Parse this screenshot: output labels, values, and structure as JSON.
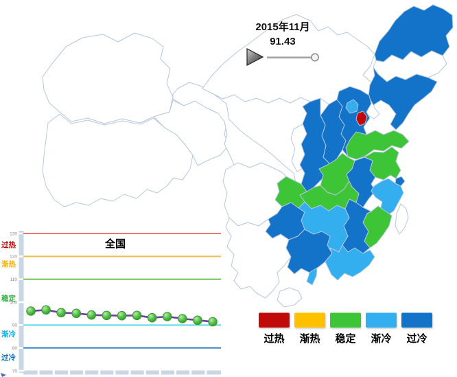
{
  "map_header": {
    "date": "2015年11月",
    "value": "91.43"
  },
  "slider": {
    "position": "end",
    "play_icon": "play-triangle"
  },
  "status_colors": {
    "过热": "#C00A0A",
    "渐热": "#FFC000",
    "稳定": "#3EC437",
    "渐冷": "#33AEEF",
    "过冷": "#1273C8",
    "": "#FFFFFF"
  },
  "legend": {
    "items": [
      {
        "label": "过热"
      },
      {
        "label": "渐热"
      },
      {
        "label": "稳定"
      },
      {
        "label": "渐冷"
      },
      {
        "label": "过冷"
      }
    ]
  },
  "map": {
    "provinces": [
      {
        "id": "xinjiang",
        "status": ""
      },
      {
        "id": "xizang",
        "status": ""
      },
      {
        "id": "qinghai",
        "status": ""
      },
      {
        "id": "gansu",
        "status": ""
      },
      {
        "id": "neimenggu",
        "status": ""
      },
      {
        "id": "ningxia",
        "status": ""
      },
      {
        "id": "sichuan",
        "status": ""
      },
      {
        "id": "yunnan",
        "status": ""
      },
      {
        "id": "jilin",
        "status": ""
      },
      {
        "id": "hainan",
        "status": ""
      },
      {
        "id": "taiwan",
        "status": ""
      },
      {
        "id": "heilongjiang",
        "status": "过冷"
      },
      {
        "id": "liaoning",
        "status": "过冷"
      },
      {
        "id": "beijing",
        "status": "渐冷"
      },
      {
        "id": "tianjin",
        "status": "过热"
      },
      {
        "id": "hebei",
        "status": "过冷"
      },
      {
        "id": "shanxi",
        "status": "过冷"
      },
      {
        "id": "shaanxi",
        "status": "过冷"
      },
      {
        "id": "shandong",
        "status": "稳定"
      },
      {
        "id": "henan",
        "status": "稳定"
      },
      {
        "id": "jiangsu",
        "status": "稳定"
      },
      {
        "id": "shanghai",
        "status": "过冷"
      },
      {
        "id": "anhui",
        "status": "过冷"
      },
      {
        "id": "zhejiang",
        "status": "渐冷"
      },
      {
        "id": "hubei",
        "status": "稳定"
      },
      {
        "id": "chongqing",
        "status": "稳定"
      },
      {
        "id": "hunan",
        "status": "渐冷"
      },
      {
        "id": "jiangxi",
        "status": "过冷"
      },
      {
        "id": "fujian",
        "status": "稳定"
      },
      {
        "id": "guizhou",
        "status": "过冷"
      },
      {
        "id": "guangxi",
        "status": "过冷"
      },
      {
        "id": "guangdong",
        "status": "渐冷"
      }
    ]
  },
  "chart_data": {
    "type": "line",
    "title": "全国",
    "x_tick_count": 13,
    "values": [
      96.1,
      96.6,
      95.4,
      95.1,
      94.4,
      94.2,
      94.1,
      94.2,
      93.2,
      93.7,
      92.8,
      92.1,
      91.43
    ],
    "ylim": [
      70,
      130
    ],
    "yticks": [
      130,
      120,
      110,
      100,
      90,
      80,
      70
    ],
    "threshold_lines": [
      {
        "y": 130,
        "color": "#E9756B"
      },
      {
        "y": 120,
        "color": "#F1BC4C"
      },
      {
        "y": 110,
        "color": "#6FC24F"
      },
      {
        "y": 90,
        "color": "#5BD6E3"
      },
      {
        "y": 80,
        "color": "#2E7FC0"
      }
    ],
    "zone_labels": [
      {
        "text": "过热",
        "color": "#C00000"
      },
      {
        "text": "渐热",
        "color": "#FFAE00"
      },
      {
        "text": "稳定",
        "color": "#27AE3C"
      },
      {
        "text": "渐冷",
        "color": "#00AEEF"
      },
      {
        "text": "过冷",
        "color": "#0B72C0"
      }
    ],
    "line_color": "#6B3EA0",
    "marker_stroke": "#3F9434",
    "grid": false,
    "legend_position": "none"
  }
}
